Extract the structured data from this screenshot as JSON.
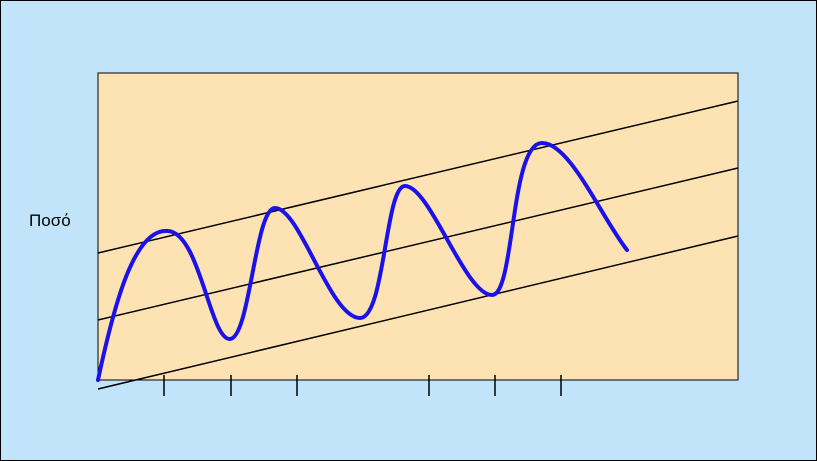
{
  "chart_data": {
    "type": "line",
    "title": "",
    "xlabel": "",
    "ylabel": "Ποσό",
    "x_tick_count": 6,
    "trend_channel": {
      "lines": [
        "upper",
        "middle",
        "lower"
      ],
      "direction": "rising"
    },
    "series": [
      {
        "values": [
          0,
          0.62,
          0.16,
          0.74,
          0.24,
          0.9,
          0.34,
          1.05
        ],
        "description_order": [
          "start",
          "peak",
          "trough",
          "peak",
          "trough",
          "peak",
          "trough",
          "peak",
          "end"
        ]
      }
    ],
    "grid": false,
    "legend": "none"
  },
  "colors": {
    "background": "#c1e4fb",
    "plot_area": "#fde3b4",
    "series": "#1a12e6",
    "trend_lines": "#000000",
    "border": "#000000"
  }
}
